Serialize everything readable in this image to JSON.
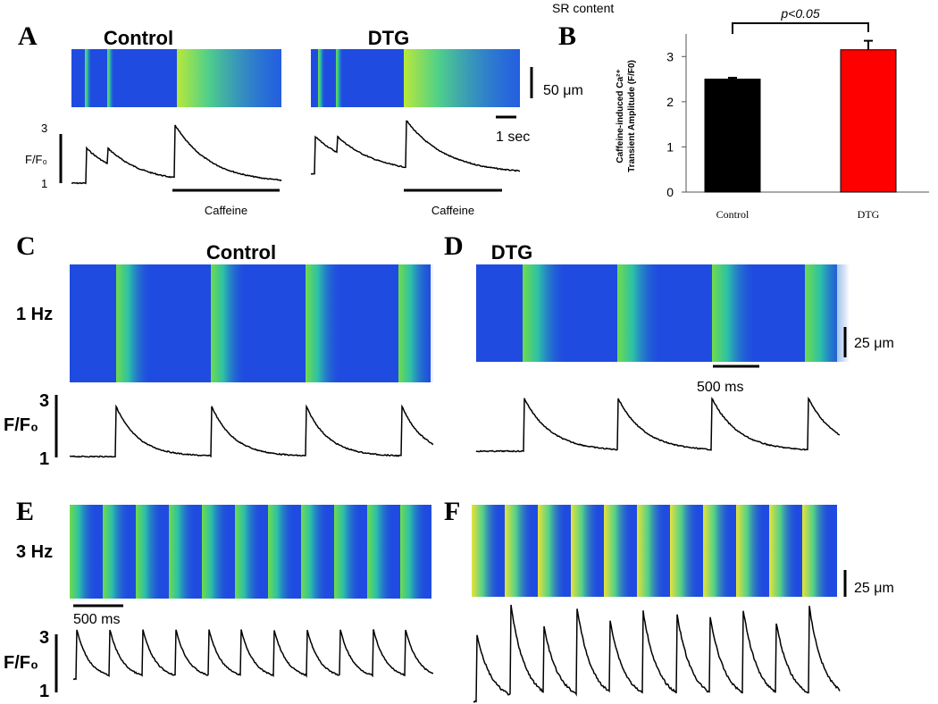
{
  "panels": {
    "A": {
      "letter": "A",
      "control_title": "Control",
      "dtg_title": "DTG",
      "scale_space": "50 μm",
      "scale_time": "1 sec",
      "y_top": "3",
      "y_label": "F/F₀",
      "y_bottom": "1",
      "caffeine_control": "Caffeine",
      "caffeine_dtg": "Caffeine"
    },
    "B": {
      "letter": "B"
    },
    "C": {
      "letter": "C",
      "title": "Control",
      "rate": "1 Hz",
      "y_top": "3",
      "y_label": "F/F₀",
      "y_bottom": "1"
    },
    "D": {
      "letter": "D",
      "title": "DTG",
      "scale_space": "25 μm",
      "scale_time": "500 ms"
    },
    "E": {
      "letter": "E",
      "rate": "3 Hz",
      "scale_time": "500 ms",
      "y_top": "3",
      "y_label": "F/F₀",
      "y_bottom": "1"
    },
    "F": {
      "letter": "F",
      "scale_space": "25 μm"
    }
  },
  "chart_data": {
    "type": "bar",
    "title": "SR content",
    "ylabel": [
      "Caffeine-induced Ca²⁺",
      "Transient Amplitude (F/F0)"
    ],
    "categories": [
      "Control",
      "DTG"
    ],
    "values": [
      2.5,
      3.15
    ],
    "errors": [
      0.03,
      0.2
    ],
    "colors": [
      "#000000",
      "#ff0000"
    ],
    "annotation": "p<0.05",
    "ylim": [
      0,
      3.5
    ],
    "yticks": [
      0,
      1,
      2,
      3
    ]
  }
}
